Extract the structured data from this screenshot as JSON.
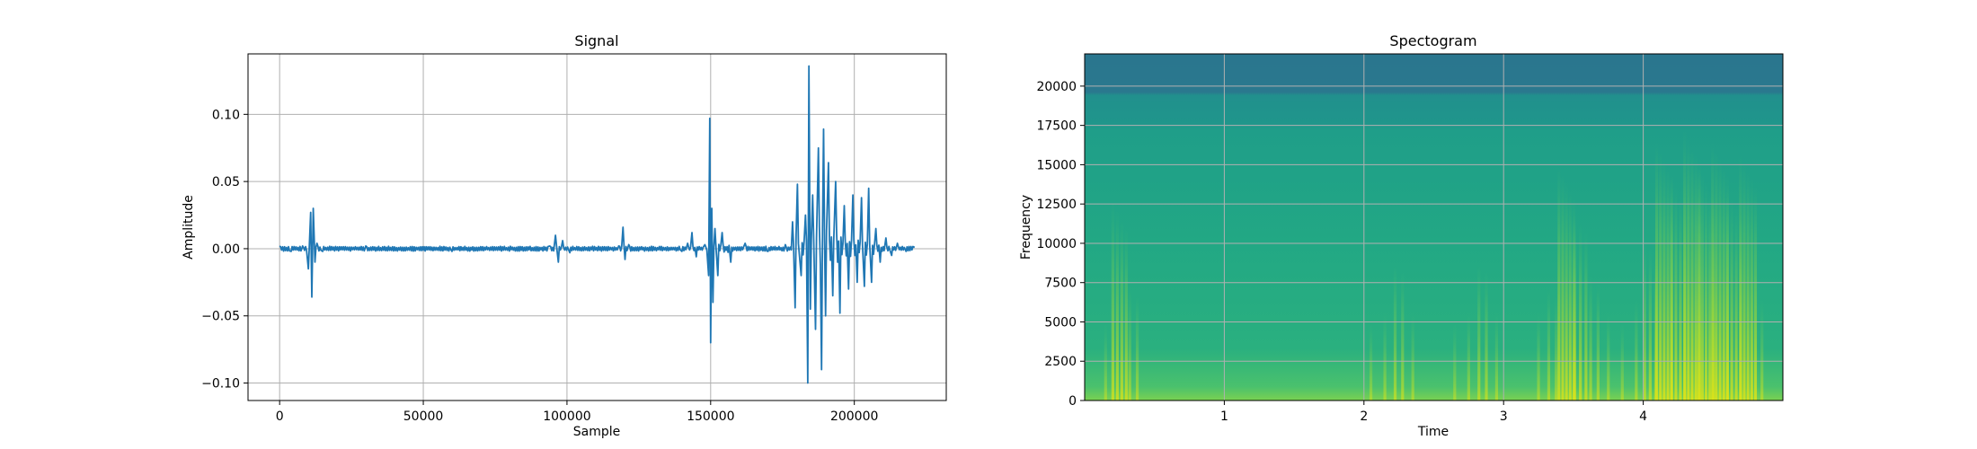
{
  "chart_data": [
    {
      "type": "line",
      "title": "Signal",
      "xlabel": "Sample",
      "ylabel": "Amplitude",
      "xlim": [
        -11000,
        232000
      ],
      "ylim": [
        -0.113,
        0.145
      ],
      "xticks": [
        0,
        50000,
        100000,
        150000,
        200000
      ],
      "xtick_labels": [
        "0",
        "50000",
        "100000",
        "150000",
        "200000"
      ],
      "yticks": [
        -0.1,
        -0.05,
        0.0,
        0.05,
        0.1
      ],
      "ytick_labels": [
        "−0.10",
        "−0.05",
        "0.00",
        "0.05",
        "0.10"
      ],
      "grid": true,
      "color": "#1f77b4",
      "series": [
        {
          "x": [
            0,
            4000,
            8000,
            10000,
            10800,
            11200,
            11700,
            12300,
            13000,
            15000,
            30000,
            60000,
            94000,
            96000,
            97000,
            98500,
            101000,
            118000,
            119500,
            120200,
            121500,
            140000,
            142000,
            143500,
            145000,
            148000,
            149300,
            149700,
            150000,
            150400,
            150800,
            151500,
            152500,
            154000,
            157000,
            162000,
            170000,
            176000,
            178500,
            179400,
            180200,
            181500,
            183000,
            183800,
            184200,
            184700,
            185500,
            186500,
            187500,
            188600,
            189300,
            190000,
            191000,
            192500,
            193500,
            195000,
            196500,
            198000,
            199500,
            201000,
            202500,
            203500,
            205000,
            206000,
            207500,
            209000,
            211000,
            213000,
            215000,
            218000,
            221000
          ],
          "y": [
            0.002,
            -0.002,
            0.002,
            -0.015,
            0.027,
            -0.036,
            0.03,
            -0.01,
            0.004,
            -0.002,
            0.002,
            -0.002,
            0.002,
            0.01,
            -0.01,
            0.006,
            -0.003,
            0.002,
            0.016,
            -0.008,
            0.003,
            -0.002,
            0.004,
            0.012,
            -0.006,
            0.003,
            -0.02,
            0.097,
            -0.07,
            0.03,
            -0.04,
            0.015,
            -0.02,
            0.012,
            -0.01,
            0.004,
            -0.002,
            0.003,
            0.02,
            -0.044,
            0.048,
            -0.02,
            0.025,
            -0.1,
            0.136,
            -0.045,
            0.04,
            -0.06,
            0.075,
            -0.09,
            0.089,
            -0.05,
            0.064,
            -0.035,
            0.05,
            -0.048,
            0.032,
            -0.03,
            0.04,
            -0.025,
            0.038,
            -0.028,
            0.045,
            -0.025,
            0.015,
            -0.01,
            0.008,
            -0.005,
            0.004,
            -0.002,
            0.001
          ]
        }
      ]
    },
    {
      "type": "heatmap",
      "title": "Spectogram",
      "xlabel": "Time",
      "ylabel": "Frequency",
      "xlim": [
        0.0,
        5.0
      ],
      "ylim": [
        0,
        22050
      ],
      "xticks": [
        1,
        2,
        3,
        4
      ],
      "xtick_labels": [
        "1",
        "2",
        "3",
        "4"
      ],
      "yticks": [
        0,
        2500,
        5000,
        7500,
        10000,
        12500,
        15000,
        17500,
        20000
      ],
      "ytick_labels": [
        "0",
        "2500",
        "5000",
        "7500",
        "10000",
        "12500",
        "15000",
        "17500",
        "20000"
      ],
      "grid": true,
      "colormap": "viridis",
      "time_bins": [
        0.05,
        0.15,
        0.25,
        0.35,
        0.45,
        0.55,
        0.65,
        0.75,
        0.85,
        0.95,
        1.05,
        1.15,
        1.25,
        1.35,
        1.45,
        1.55,
        1.65,
        1.75,
        1.85,
        1.95,
        2.05,
        2.15,
        2.25,
        2.35,
        2.45,
        2.55,
        2.65,
        2.75,
        2.85,
        2.95,
        3.05,
        3.15,
        3.25,
        3.35,
        3.45,
        3.55,
        3.65,
        3.75,
        3.85,
        3.95,
        4.05,
        4.15,
        4.25,
        4.35,
        4.45,
        4.55,
        4.65,
        4.75,
        4.85,
        4.95
      ],
      "event_strength": [
        0.05,
        0.1,
        0.6,
        0.25,
        0.05,
        0.05,
        0.05,
        0.05,
        0.05,
        0.05,
        0.05,
        0.05,
        0.05,
        0.05,
        0.05,
        0.05,
        0.05,
        0.05,
        0.05,
        0.05,
        0.1,
        0.15,
        0.35,
        0.15,
        0.05,
        0.05,
        0.1,
        0.15,
        0.35,
        0.15,
        0.05,
        0.05,
        0.15,
        0.25,
        0.75,
        0.55,
        0.3,
        0.15,
        0.1,
        0.2,
        0.45,
        0.85,
        0.7,
        0.9,
        0.75,
        0.85,
        0.65,
        0.8,
        0.2,
        0.05
      ]
    }
  ]
}
